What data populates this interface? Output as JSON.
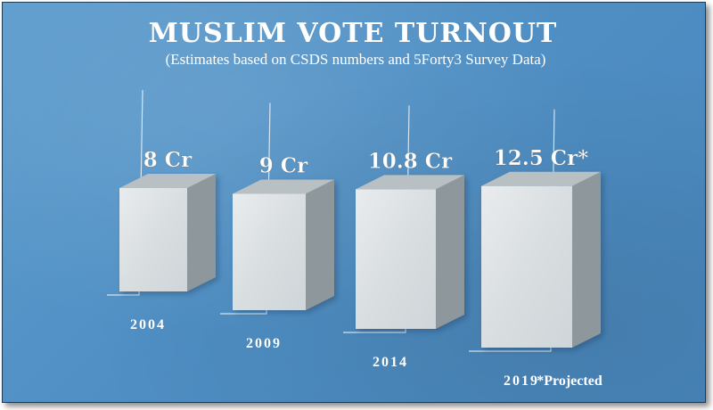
{
  "chart_data": {
    "type": "bar",
    "title": "MUSLIM VOTE TURNOUT",
    "subtitle": "(Estimates based on CSDS numbers and 5Forty3 Survey Data)",
    "categories": [
      "2004",
      "2009",
      "2014",
      "2019"
    ],
    "values": [
      8,
      9,
      10.8,
      12.5
    ],
    "value_labels": [
      "8 Cr",
      "9 Cr",
      "10.8 Cr",
      "12.5 Cr*"
    ],
    "footnote": "*Projected",
    "unit": "Cr",
    "style": "3d-boxes",
    "grid": false,
    "legend": "none"
  },
  "colors": {
    "background": "#4f8fc4",
    "box_front": "#dfe3e6",
    "box_side": "#8e979c",
    "box_top": "#b8c0c4",
    "text": "#ffffff"
  }
}
